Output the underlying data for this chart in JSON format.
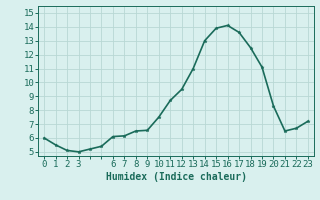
{
  "x": [
    0,
    1,
    2,
    3,
    4,
    5,
    6,
    7,
    8,
    9,
    10,
    11,
    12,
    13,
    14,
    15,
    16,
    17,
    18,
    19,
    20,
    21,
    22,
    23
  ],
  "y": [
    6.0,
    5.5,
    5.1,
    5.0,
    5.2,
    5.4,
    6.1,
    6.15,
    6.5,
    6.55,
    7.5,
    8.7,
    9.5,
    11.0,
    13.0,
    13.9,
    14.1,
    13.6,
    12.5,
    11.1,
    8.3,
    6.5,
    6.7,
    7.2
  ],
  "line_color": "#1a6b5a",
  "bg_color": "#d9f0ee",
  "grid_color": "#b8d8d4",
  "xlabel": "Humidex (Indice chaleur)",
  "yticks": [
    5,
    6,
    7,
    8,
    9,
    10,
    11,
    12,
    13,
    14,
    15
  ],
  "ylim": [
    4.7,
    15.5
  ],
  "xlim": [
    -0.5,
    23.5
  ],
  "marker_size": 2.5,
  "linewidth": 1.2,
  "xlabel_fontsize": 7,
  "tick_fontsize": 6.5
}
